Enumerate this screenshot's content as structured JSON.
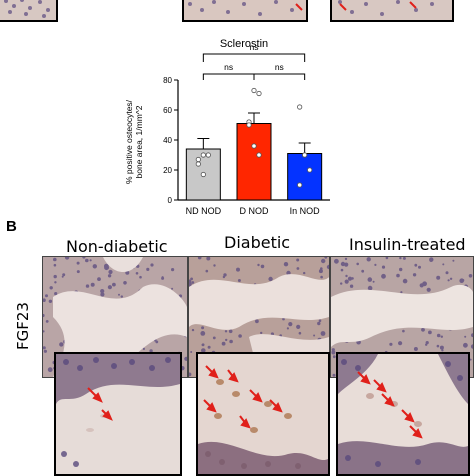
{
  "panel_b": {
    "letter": "B",
    "columns": [
      "Non-diabetic",
      "Diabetic",
      "Insulin-treated"
    ],
    "row_label": "FGF23"
  },
  "colors": {
    "nd_bar": "#c8c8c8",
    "d_bar": "#ff2600",
    "in_bar": "#0433ff",
    "arrow": "#e0201a",
    "tissue_bg": "#d9c6bf",
    "bone": "#efe6e3",
    "cell_purple": "#5a4a7e"
  },
  "chart_data": {
    "type": "bar",
    "title": "Sclerostin",
    "ylabel": "% positive osteocytes/\nbone area, 1/mm^2",
    "categories": [
      "ND NOD",
      "D NOD",
      "In NOD"
    ],
    "values": [
      34,
      51,
      31
    ],
    "errors": [
      7,
      7,
      7
    ],
    "ylim": [
      0,
      80
    ],
    "yticks": [
      "0",
      "20",
      "40",
      "60",
      "80"
    ],
    "points": [
      [
        24,
        30,
        30,
        27,
        17
      ],
      [
        52,
        73,
        71,
        50,
        36,
        30
      ],
      [
        62,
        30,
        20,
        10,
        30
      ]
    ],
    "significance": [
      {
        "from": "ND NOD",
        "to": "D NOD",
        "label": "ns"
      },
      {
        "from": "D NOD",
        "to": "In NOD",
        "label": "ns"
      },
      {
        "from": "ND NOD",
        "to": "In NOD",
        "label": "ns"
      }
    ]
  }
}
